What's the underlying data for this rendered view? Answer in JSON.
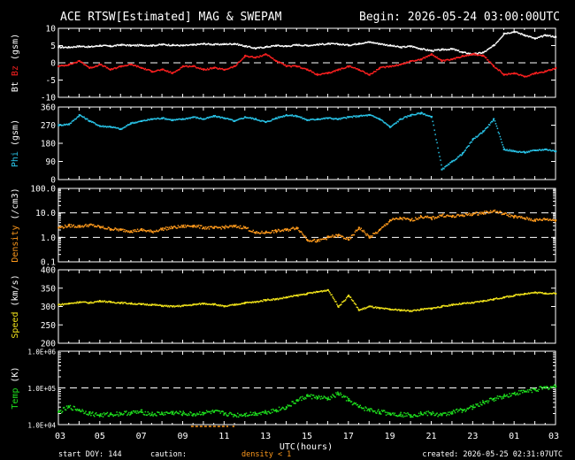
{
  "header": {
    "title": "ACE RTSW[Estimated] MAG & SWEPAM",
    "begin": "Begin: 2026-05-24 03:00:00UTC"
  },
  "footer": {
    "start_doy": "start DOY: 144",
    "caution": "caution:",
    "density_note": "density < 1",
    "created": "created: 2026-05-25 02:31:07UTC"
  },
  "colors": {
    "bt": "#ffffff",
    "bz": "#ff2020",
    "phi": "#29c4e8",
    "density": "#ff9a1c",
    "speed": "#f0e21a",
    "temp": "#1ee21e",
    "axis": "#ffffff",
    "background": "#000000"
  },
  "chart_data": [
    {
      "type": "scatter",
      "panel": "bt-bz",
      "ylabel_parts": [
        "Bt",
        "Bz",
        "(gsm)"
      ],
      "yticks": [
        "10",
        "5",
        "0",
        "-5",
        "-10"
      ],
      "ylim": [
        -10,
        10
      ],
      "dashed_reference_lines": [
        0
      ],
      "series": [
        {
          "name": "Bt",
          "x": [
            0,
            1,
            2,
            3,
            4,
            5,
            6,
            7,
            8,
            9,
            10,
            11,
            12,
            13,
            14,
            15,
            16,
            17,
            18,
            19,
            20,
            21,
            22,
            23,
            24,
            25,
            26,
            27,
            28,
            29,
            30,
            31,
            32,
            33,
            34,
            35,
            36,
            37,
            38,
            39,
            40,
            41,
            42,
            43,
            44,
            45,
            46,
            47,
            48
          ],
          "values": [
            4.5,
            4.5,
            4.8,
            4.6,
            5.0,
            4.8,
            5.2,
            5.0,
            5.1,
            5.0,
            5.3,
            5.1,
            5.0,
            5.2,
            5.5,
            5.3,
            5.4,
            5.5,
            4.8,
            4.2,
            4.6,
            5.0,
            4.8,
            5.2,
            5.0,
            5.3,
            5.5,
            5.4,
            5.1,
            5.6,
            6.0,
            5.5,
            5.0,
            4.5,
            4.8,
            4.0,
            3.5,
            3.8,
            4.0,
            3.0,
            2.5,
            3.0,
            5.0,
            8.5,
            9.0,
            8.0,
            7.0,
            8.0,
            7.5
          ]
        },
        {
          "name": "Bz",
          "x": [
            0,
            1,
            2,
            3,
            4,
            5,
            6,
            7,
            8,
            9,
            10,
            11,
            12,
            13,
            14,
            15,
            16,
            17,
            18,
            19,
            20,
            21,
            22,
            23,
            24,
            25,
            26,
            27,
            28,
            29,
            30,
            31,
            32,
            33,
            34,
            35,
            36,
            37,
            38,
            39,
            40,
            41,
            42,
            43,
            44,
            45,
            46,
            47,
            48
          ],
          "values": [
            -1.0,
            -0.5,
            0.5,
            -1.5,
            -0.5,
            -2.0,
            -1.0,
            -0.5,
            -1.5,
            -2.5,
            -2.0,
            -3.0,
            -1.0,
            -1.0,
            -2.0,
            -1.5,
            -2.0,
            -1.0,
            2.0,
            1.5,
            2.5,
            0.5,
            -1.0,
            -1.0,
            -2.0,
            -3.5,
            -3.0,
            -2.0,
            -1.0,
            -2.0,
            -3.5,
            -1.5,
            -1.0,
            -0.5,
            0.5,
            1.0,
            2.5,
            0.5,
            1.0,
            2.0,
            2.5,
            2.0,
            -1.0,
            -3.5,
            -3.0,
            -4.0,
            -3.0,
            -2.5,
            -1.5
          ]
        }
      ]
    },
    {
      "type": "scatter",
      "panel": "phi",
      "ylabel_parts": [
        "Phi",
        "(gsm)"
      ],
      "yticks": [
        "360",
        "270",
        "180",
        "90",
        "0"
      ],
      "ylim": [
        0,
        360
      ],
      "series": [
        {
          "name": "Phi",
          "x": [
            0,
            1,
            2,
            3,
            4,
            5,
            6,
            7,
            8,
            9,
            10,
            11,
            12,
            13,
            14,
            15,
            16,
            17,
            18,
            19,
            20,
            21,
            22,
            23,
            24,
            25,
            26,
            27,
            28,
            29,
            30,
            31,
            32,
            33,
            34,
            35,
            36,
            37,
            38,
            39,
            40,
            41,
            42,
            43,
            44,
            45,
            46,
            47,
            48
          ],
          "values": [
            270,
            275,
            320,
            290,
            265,
            262,
            250,
            280,
            290,
            300,
            305,
            295,
            300,
            310,
            300,
            315,
            305,
            290,
            310,
            300,
            285,
            305,
            320,
            315,
            295,
            300,
            305,
            300,
            310,
            315,
            320,
            300,
            260,
            300,
            320,
            330,
            310,
            50,
            90,
            130,
            200,
            240,
            300,
            150,
            140,
            135,
            145,
            150,
            140
          ]
        }
      ]
    },
    {
      "type": "scatter",
      "panel": "density",
      "ylabel_parts": [
        "Density",
        "(/cm3)"
      ],
      "yticks": [
        "100.0",
        "10.0",
        "1.0",
        "0.1"
      ],
      "yscale": "log",
      "ylim": [
        0.1,
        100
      ],
      "dashed_reference_lines": [
        10,
        1
      ],
      "series": [
        {
          "name": "Density",
          "x": [
            0,
            1,
            2,
            3,
            4,
            5,
            6,
            7,
            8,
            9,
            10,
            11,
            12,
            13,
            14,
            15,
            16,
            17,
            18,
            19,
            20,
            21,
            22,
            23,
            24,
            25,
            26,
            27,
            28,
            29,
            30,
            31,
            32,
            33,
            34,
            35,
            36,
            37,
            38,
            39,
            40,
            41,
            42,
            43,
            44,
            45,
            46,
            47,
            48
          ],
          "values": [
            2.5,
            3.0,
            2.8,
            3.2,
            2.6,
            2.2,
            2.0,
            1.8,
            2.0,
            1.7,
            2.2,
            2.5,
            2.8,
            3.0,
            2.5,
            2.4,
            2.6,
            2.8,
            2.5,
            1.5,
            1.6,
            1.8,
            2.0,
            2.5,
            0.8,
            0.7,
            1.0,
            1.2,
            0.8,
            2.5,
            1.0,
            2.0,
            5.0,
            6.0,
            5.0,
            7.0,
            6.0,
            8.0,
            7.0,
            8.0,
            9.0,
            10.0,
            12.0,
            9.0,
            7.0,
            6.0,
            5.0,
            5.5,
            5.0
          ]
        }
      ]
    },
    {
      "type": "scatter",
      "panel": "speed",
      "ylabel_parts": [
        "Speed",
        "(km/s)"
      ],
      "yticks": [
        "400",
        "350",
        "300",
        "250",
        "200"
      ],
      "ylim": [
        200,
        400
      ],
      "series": [
        {
          "name": "Speed",
          "x": [
            0,
            1,
            2,
            3,
            4,
            5,
            6,
            7,
            8,
            9,
            10,
            11,
            12,
            13,
            14,
            15,
            16,
            17,
            18,
            19,
            20,
            21,
            22,
            23,
            24,
            25,
            26,
            27,
            28,
            29,
            30,
            31,
            32,
            33,
            34,
            35,
            36,
            37,
            38,
            39,
            40,
            41,
            42,
            43,
            44,
            45,
            46,
            47,
            48
          ],
          "values": [
            305,
            308,
            312,
            310,
            315,
            312,
            310,
            308,
            306,
            305,
            302,
            300,
            302,
            305,
            308,
            306,
            300,
            305,
            310,
            312,
            318,
            320,
            325,
            330,
            335,
            340,
            345,
            300,
            330,
            290,
            300,
            295,
            292,
            290,
            288,
            292,
            295,
            300,
            305,
            308,
            310,
            315,
            320,
            325,
            330,
            335,
            338,
            336,
            335
          ]
        }
      ]
    },
    {
      "type": "scatter",
      "panel": "temp",
      "ylabel_parts": [
        "Temp",
        "(K)"
      ],
      "yticks": [
        "1.0E+06",
        "1.0E+05",
        "1.0E+04"
      ],
      "yscale": "log",
      "ylim": [
        10000,
        1000000
      ],
      "dashed_reference_lines": [
        100000
      ],
      "series": [
        {
          "name": "Temp",
          "x": [
            0,
            1,
            2,
            3,
            4,
            5,
            6,
            7,
            8,
            9,
            10,
            11,
            12,
            13,
            14,
            15,
            16,
            17,
            18,
            19,
            20,
            21,
            22,
            23,
            24,
            25,
            26,
            27,
            28,
            29,
            30,
            31,
            32,
            33,
            34,
            35,
            36,
            37,
            38,
            39,
            40,
            41,
            42,
            43,
            44,
            45,
            46,
            47,
            48
          ],
          "values": [
            22000,
            30000,
            25000,
            20000,
            18000,
            19000,
            20000,
            21000,
            22000,
            19000,
            20000,
            21000,
            20000,
            19000,
            21000,
            22000,
            20000,
            18000,
            19000,
            20000,
            22000,
            25000,
            30000,
            45000,
            60000,
            55000,
            50000,
            70000,
            45000,
            30000,
            25000,
            22000,
            20000,
            19000,
            18000,
            20000,
            20000,
            18000,
            22000,
            25000,
            30000,
            40000,
            50000,
            60000,
            70000,
            80000,
            90000,
            100000,
            110000
          ]
        }
      ]
    }
  ],
  "x_axis": {
    "label": "UTC(hours)",
    "ticks": [
      "03",
      "05",
      "07",
      "09",
      "11",
      "13",
      "15",
      "17",
      "19",
      "21",
      "23",
      "01",
      "03"
    ],
    "range_hours": [
      0,
      48
    ]
  }
}
